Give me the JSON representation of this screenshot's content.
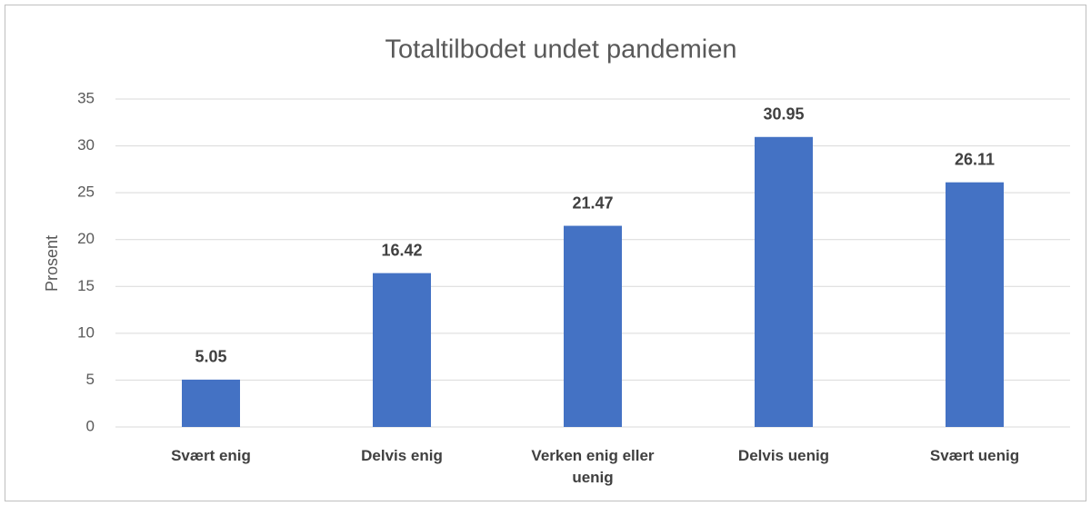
{
  "chart_data": {
    "type": "bar",
    "title": "Totaltilbodet undet pandemien",
    "ylabel": "Prosent",
    "categories": [
      "Svært enig",
      "Delvis enig",
      "Verken enig eller uenig",
      "Delvis uenig",
      "Svært uenig"
    ],
    "values": [
      5.05,
      16.42,
      21.47,
      30.95,
      26.11
    ],
    "color": "#4472c4",
    "ylim": [
      0,
      35
    ],
    "yticks": [
      0,
      5,
      10,
      15,
      20,
      25,
      30,
      35
    ],
    "grid": true,
    "value_labels_shown": true
  }
}
